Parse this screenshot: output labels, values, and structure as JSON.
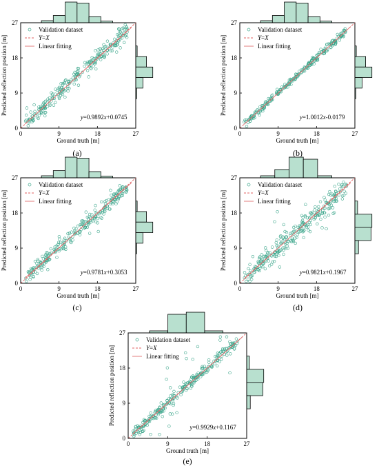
{
  "figure": {
    "panels": [
      "(a)",
      "(b)",
      "(c)",
      "(d)",
      "(e)"
    ]
  },
  "colors": {
    "scatter": "#3aa58a",
    "identity": "#e06060",
    "fit": "#e07070",
    "hist_fill": "#b8e0cf",
    "hist_stroke": "#000000"
  },
  "chart_data": [
    {
      "type": "scatter",
      "panel": "(a)",
      "xlabel": "Ground truth [m]",
      "ylabel": "Predicted reflection position [m]",
      "xlim": [
        0,
        27
      ],
      "ylim": [
        0,
        27
      ],
      "xticks": [
        "0",
        "9",
        "18",
        "27"
      ],
      "yticks": [
        "0",
        "9",
        "18",
        "27"
      ],
      "legend": [
        "Validation dataset",
        "Y=X",
        "Linear fitting"
      ],
      "legend_position": "top-left",
      "equation": "y=0.9892x+0.0745",
      "fit": {
        "slope": 0.9892,
        "intercept": 0.0745
      },
      "noise": 1.2,
      "outliers": 3,
      "hist_top": [
        0.1,
        0.35,
        1.0,
        0.95,
        0.3,
        0.08
      ],
      "hist_right": [
        0.08,
        0.6,
        0.95,
        0.4,
        0.05
      ]
    },
    {
      "type": "scatter",
      "panel": "(b)",
      "xlabel": "Ground truth [m]",
      "ylabel": "Predicted reflection position [m]",
      "xlim": [
        0,
        27
      ],
      "ylim": [
        0,
        27
      ],
      "xticks": [
        "0",
        "9",
        "18",
        "27"
      ],
      "yticks": [
        "0",
        "9",
        "18",
        "27"
      ],
      "legend": [
        "Validation dataset",
        "Y=X",
        "Linear fitting"
      ],
      "legend_position": "top-left",
      "equation": "y=1.0012x-0.0179",
      "fit": {
        "slope": 1.0012,
        "intercept": -0.0179
      },
      "noise": 0.45,
      "outliers": 0,
      "hist_top": [
        0.1,
        0.35,
        1.0,
        0.95,
        0.3,
        0.08
      ],
      "hist_right": [
        0.08,
        0.6,
        0.95,
        0.4,
        0.05
      ]
    },
    {
      "type": "scatter",
      "panel": "(c)",
      "xlabel": "Ground truth [m]",
      "ylabel": "Predicted reflection position [m]",
      "xlim": [
        0,
        27
      ],
      "ylim": [
        0,
        27
      ],
      "xticks": [
        "0",
        "9",
        "18",
        "27"
      ],
      "yticks": [
        "0",
        "9",
        "18",
        "27"
      ],
      "legend": [
        "Validation dataset",
        "Y=X",
        "Linear fitting"
      ],
      "legend_position": "top-left",
      "equation": "y=0.9781x+0.3053",
      "fit": {
        "slope": 0.9781,
        "intercept": 0.3053
      },
      "noise": 1.0,
      "outliers": 4,
      "hist_top": [
        0.1,
        0.35,
        1.0,
        0.95,
        0.3,
        0.08
      ],
      "hist_right": [
        0.08,
        0.6,
        0.95,
        0.4,
        0.05
      ]
    },
    {
      "type": "scatter",
      "panel": "(d)",
      "xlabel": "Ground truth [m]",
      "ylabel": "Predicted reflection position [m]",
      "xlim": [
        0,
        27
      ],
      "ylim": [
        0,
        27
      ],
      "xticks": [
        "0",
        "9",
        "18",
        "27"
      ],
      "yticks": [
        "0",
        "9",
        "18",
        "27"
      ],
      "legend": [
        "Validation dataset",
        "Y=X",
        "Linear fitting"
      ],
      "legend_position": "top-left",
      "equation": "y=0.9821x+0.1967",
      "fit": {
        "slope": 0.9821,
        "intercept": 0.1967
      },
      "noise": 1.3,
      "outliers": 22,
      "hist_top": [
        0.1,
        0.4,
        1.0,
        0.9,
        0.1
      ],
      "hist_right": [
        0.15,
        0.95,
        0.9,
        0.2
      ]
    },
    {
      "type": "scatter",
      "panel": "(e)",
      "xlabel": "Ground truth [m]",
      "ylabel": "Predicted reflection position [m]",
      "xlim": [
        0,
        27
      ],
      "ylim": [
        0,
        27
      ],
      "xticks": [
        "0",
        "9",
        "18",
        "27"
      ],
      "yticks": [
        "0",
        "9",
        "18",
        "27"
      ],
      "legend": [
        "Validation dataset",
        "Y=X",
        "Linear fitting"
      ],
      "legend_position": "top-left",
      "equation": "y=0.9929x+0.1167",
      "fit": {
        "slope": 0.9929,
        "intercept": 0.1167
      },
      "noise": 0.7,
      "outliers": 26,
      "hist_top": [
        0.1,
        0.9,
        1.0,
        0.1
      ],
      "hist_right": [
        0.15,
        0.95,
        0.9,
        0.2
      ]
    }
  ]
}
